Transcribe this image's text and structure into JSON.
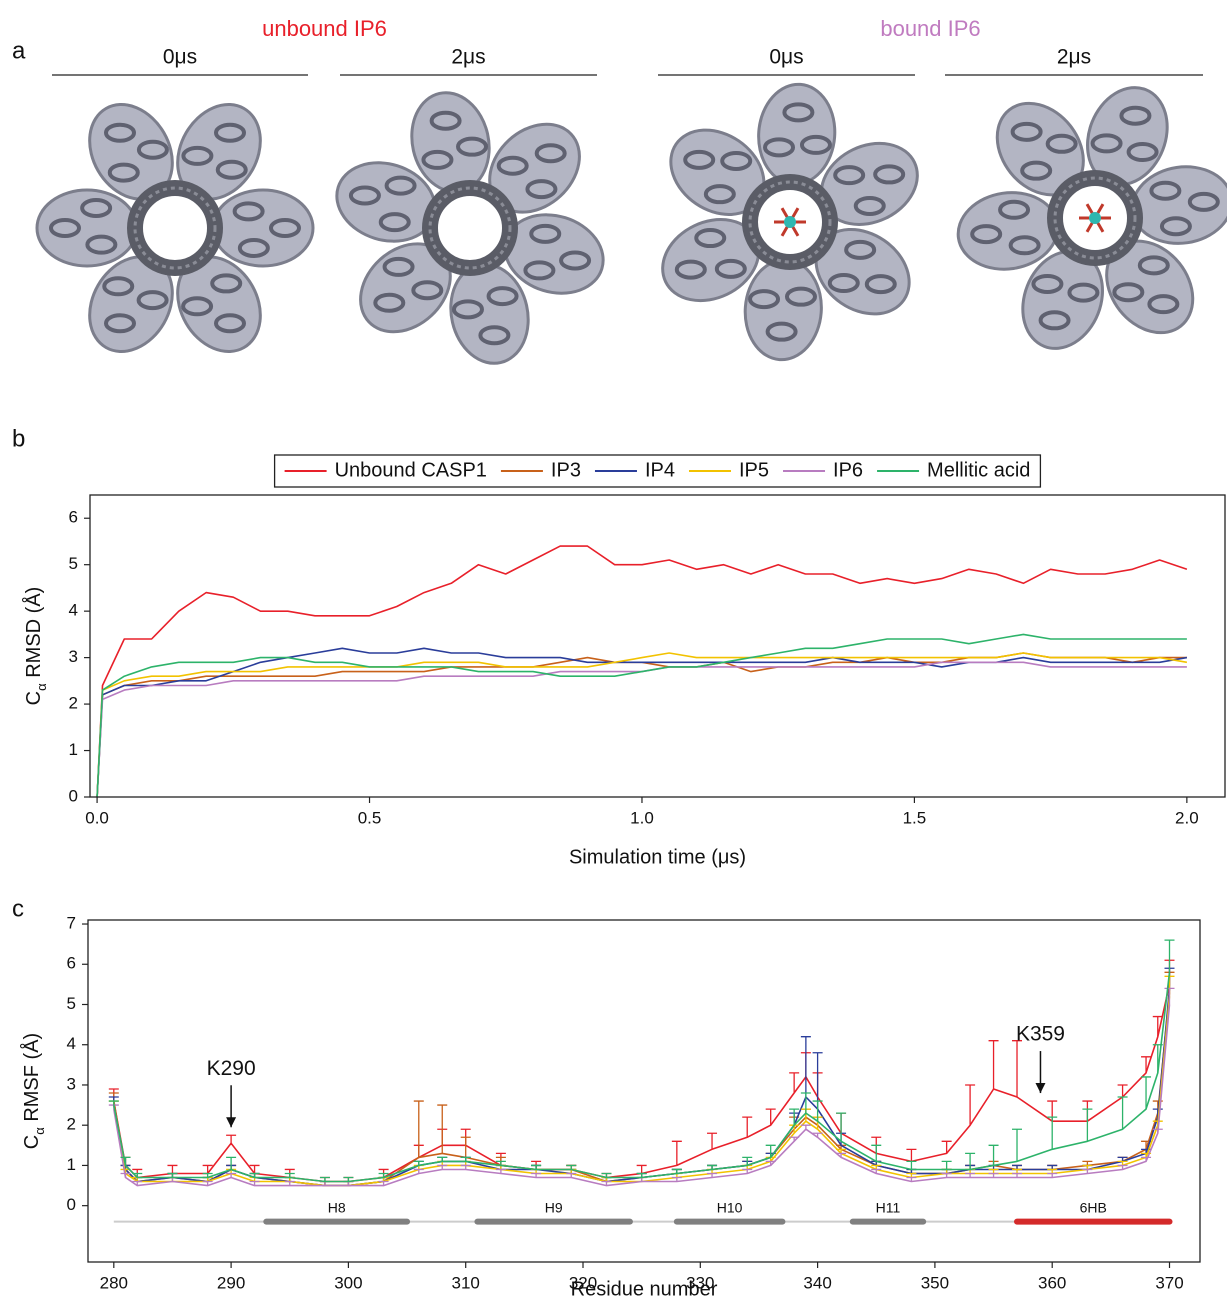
{
  "figure": {
    "panel_labels": [
      "a",
      "b",
      "c"
    ],
    "panel_a": [
      {
        "title": "unbound IP6",
        "color": "#e8202a",
        "times": [
          "0μs",
          "2μs"
        ]
      },
      {
        "title": "bound IP6",
        "color": "#c07bc0",
        "times": [
          "0μs",
          "2μs"
        ]
      }
    ]
  },
  "chart_data": [
    {
      "type": "line",
      "legend": "top",
      "xlabel": "Simulation time (μs)",
      "ylabel": [
        "C",
        "α",
        " RMSD (Å)"
      ],
      "xlim": [
        -0.013,
        2.07
      ],
      "ylim": [
        0,
        6.5
      ],
      "xticks": [
        {
          "value": 0,
          "label": "0.0"
        },
        0.5,
        {
          "value": 1,
          "label": "1.0"
        },
        1.5,
        {
          "value": 2,
          "label": "2.0"
        }
      ],
      "yticks": [
        0,
        1,
        2,
        3,
        4,
        5,
        6
      ],
      "x": [
        0,
        0.01,
        0.05,
        0.1,
        0.15,
        0.2,
        0.25,
        0.3,
        0.35,
        0.4,
        0.45,
        0.5,
        0.55,
        0.6,
        0.65,
        0.7,
        0.75,
        0.8,
        0.85,
        0.9,
        0.95,
        1.0,
        1.05,
        1.1,
        1.15,
        1.2,
        1.25,
        1.3,
        1.35,
        1.4,
        1.45,
        1.5,
        1.55,
        1.6,
        1.65,
        1.7,
        1.75,
        1.8,
        1.85,
        1.9,
        1.95,
        2.0
      ],
      "series": [
        {
          "name": "Unbound CASP1",
          "color": "#e8202a",
          "values": [
            0,
            2.4,
            3.4,
            3.4,
            4.0,
            4.4,
            4.3,
            4.0,
            4.0,
            3.9,
            3.9,
            3.9,
            4.1,
            4.4,
            4.6,
            5.0,
            4.8,
            5.1,
            5.4,
            5.4,
            5.0,
            5.0,
            5.1,
            4.9,
            5.0,
            4.8,
            5.0,
            4.8,
            4.8,
            4.6,
            4.7,
            4.6,
            4.7,
            4.9,
            4.8,
            4.6,
            4.9,
            4.8,
            4.8,
            4.9,
            5.1,
            4.9
          ]
        },
        {
          "name": "IP3",
          "color": "#c8611a",
          "values": [
            0,
            2.2,
            2.4,
            2.5,
            2.5,
            2.6,
            2.6,
            2.6,
            2.6,
            2.6,
            2.7,
            2.7,
            2.7,
            2.7,
            2.8,
            2.8,
            2.8,
            2.8,
            2.9,
            3.0,
            2.9,
            2.9,
            2.8,
            2.8,
            2.9,
            2.7,
            2.8,
            2.8,
            2.9,
            2.9,
            3.0,
            2.9,
            2.9,
            3.0,
            3.0,
            3.1,
            3.0,
            3.0,
            3.0,
            2.9,
            3.0,
            3.0
          ]
        },
        {
          "name": "IP4",
          "color": "#2a3d9a",
          "values": [
            0,
            2.2,
            2.4,
            2.4,
            2.5,
            2.5,
            2.7,
            2.9,
            3.0,
            3.1,
            3.2,
            3.1,
            3.1,
            3.2,
            3.1,
            3.1,
            3.0,
            3.0,
            3.0,
            2.9,
            2.9,
            2.9,
            2.9,
            2.9,
            2.9,
            2.9,
            2.9,
            2.9,
            3.0,
            2.9,
            2.9,
            2.9,
            2.8,
            2.9,
            2.9,
            3.0,
            2.9,
            2.9,
            2.9,
            2.9,
            2.9,
            3.0
          ]
        },
        {
          "name": "IP5",
          "color": "#f2c200",
          "values": [
            0,
            2.3,
            2.5,
            2.6,
            2.6,
            2.7,
            2.7,
            2.7,
            2.8,
            2.8,
            2.8,
            2.8,
            2.8,
            2.9,
            2.9,
            2.9,
            2.8,
            2.8,
            2.8,
            2.8,
            2.9,
            3.0,
            3.1,
            3.0,
            3.0,
            3.0,
            3.0,
            3.0,
            3.0,
            3.0,
            3.0,
            3.0,
            3.0,
            3.0,
            3.0,
            3.1,
            3.0,
            3.0,
            3.0,
            3.0,
            3.0,
            2.9
          ]
        },
        {
          "name": "IP6",
          "color": "#b87cc0",
          "values": [
            0,
            2.1,
            2.3,
            2.4,
            2.4,
            2.4,
            2.5,
            2.5,
            2.5,
            2.5,
            2.5,
            2.5,
            2.5,
            2.6,
            2.6,
            2.6,
            2.6,
            2.6,
            2.7,
            2.7,
            2.7,
            2.7,
            2.8,
            2.8,
            2.8,
            2.8,
            2.8,
            2.8,
            2.8,
            2.8,
            2.8,
            2.8,
            2.9,
            2.9,
            2.9,
            2.9,
            2.8,
            2.8,
            2.8,
            2.8,
            2.8,
            2.8
          ]
        },
        {
          "name": "Mellitic acid",
          "color": "#2db36a",
          "values": [
            0,
            2.3,
            2.6,
            2.8,
            2.9,
            2.9,
            2.9,
            3.0,
            3.0,
            2.9,
            2.9,
            2.8,
            2.8,
            2.8,
            2.8,
            2.7,
            2.7,
            2.7,
            2.6,
            2.6,
            2.6,
            2.7,
            2.8,
            2.8,
            2.9,
            3.0,
            3.1,
            3.2,
            3.2,
            3.3,
            3.4,
            3.4,
            3.4,
            3.3,
            3.4,
            3.5,
            3.4,
            3.4,
            3.4,
            3.4,
            3.4,
            3.4
          ]
        }
      ]
    },
    {
      "type": "line",
      "xlabel": "Residue number",
      "ylabel": [
        "C",
        "α",
        " RMSF (Å)"
      ],
      "xlim": [
        277.8,
        372.6
      ],
      "ylim": [
        -1.4,
        7.1
      ],
      "xticks": [
        280,
        290,
        300,
        310,
        320,
        330,
        340,
        350,
        360,
        370
      ],
      "yticks": [
        0,
        1,
        2,
        3,
        4,
        5,
        6,
        7
      ],
      "x": [
        280,
        281,
        282,
        285,
        288,
        290,
        292,
        295,
        298,
        300,
        303,
        306,
        308,
        310,
        313,
        316,
        319,
        322,
        325,
        328,
        331,
        334,
        336,
        338,
        339,
        340,
        342,
        345,
        348,
        351,
        353,
        355,
        357,
        360,
        363,
        366,
        368,
        369,
        370
      ],
      "series": [
        {
          "name": "Unbound CASP1",
          "color": "#e8202a",
          "values": [
            2.6,
            1.0,
            0.7,
            0.8,
            0.8,
            1.55,
            0.8,
            0.7,
            0.6,
            0.6,
            0.7,
            1.2,
            1.5,
            1.5,
            1.0,
            0.9,
            0.9,
            0.7,
            0.8,
            1.0,
            1.4,
            1.7,
            2.0,
            2.8,
            3.2,
            2.7,
            1.8,
            1.3,
            1.1,
            1.3,
            2.0,
            2.9,
            2.7,
            2.1,
            2.1,
            2.7,
            3.3,
            4.2,
            5.5
          ],
          "errors": [
            0.3,
            0.2,
            0.2,
            0.2,
            0.2,
            0.2,
            0.2,
            0.2,
            0.1,
            0.1,
            0.2,
            0.3,
            0.4,
            0.4,
            0.3,
            0.2,
            0.1,
            0.1,
            0.2,
            0.6,
            0.4,
            0.5,
            0.4,
            0.5,
            0.6,
            0.6,
            0.5,
            0.4,
            0.3,
            0.3,
            1.0,
            1.2,
            1.4,
            0.5,
            0.5,
            0.3,
            0.4,
            0.5,
            0.6
          ]
        },
        {
          "name": "IP3",
          "color": "#c8611a",
          "values": [
            2.6,
            0.9,
            0.6,
            0.7,
            0.6,
            0.9,
            0.7,
            0.6,
            0.5,
            0.5,
            0.6,
            1.2,
            1.3,
            1.2,
            1.0,
            0.9,
            0.9,
            0.6,
            0.7,
            0.8,
            0.9,
            1.0,
            1.2,
            1.9,
            2.2,
            2.0,
            1.4,
            1.0,
            0.8,
            0.8,
            0.9,
            1.0,
            0.9,
            0.9,
            1.0,
            1.1,
            1.4,
            2.3,
            5.3
          ],
          "errors": [
            0.2,
            0.1,
            0.1,
            0.1,
            0.1,
            0.1,
            0.1,
            0.1,
            0.1,
            0.1,
            0.1,
            1.4,
            1.2,
            0.5,
            0.2,
            0.1,
            0.1,
            0.1,
            0.1,
            0.1,
            0.1,
            0.1,
            0.1,
            0.3,
            0.2,
            0.2,
            0.1,
            0.1,
            0.1,
            0.1,
            0.1,
            0.1,
            0.1,
            0.1,
            0.1,
            0.1,
            0.2,
            0.3,
            0.5
          ]
        },
        {
          "name": "IP4",
          "color": "#2a3d9a",
          "values": [
            2.5,
            0.9,
            0.6,
            0.7,
            0.6,
            0.9,
            0.7,
            0.6,
            0.5,
            0.5,
            0.6,
            1.0,
            1.1,
            1.1,
            0.9,
            0.9,
            0.8,
            0.6,
            0.7,
            0.8,
            0.9,
            1.0,
            1.2,
            2.0,
            2.7,
            2.4,
            1.5,
            1.0,
            0.8,
            0.8,
            0.9,
            0.9,
            0.9,
            0.9,
            0.9,
            1.1,
            1.3,
            2.2,
            5.4
          ],
          "errors": [
            0.2,
            0.1,
            0.1,
            0.1,
            0.1,
            0.1,
            0.1,
            0.1,
            0.1,
            0.1,
            0.1,
            0.1,
            0.1,
            0.1,
            0.1,
            0.1,
            0.1,
            0.1,
            0.1,
            0.1,
            0.1,
            0.1,
            0.1,
            0.3,
            1.5,
            1.4,
            0.3,
            0.1,
            0.1,
            0.1,
            0.1,
            0.1,
            0.1,
            0.1,
            0.1,
            0.1,
            0.1,
            0.2,
            0.5
          ]
        },
        {
          "name": "IP5",
          "color": "#f2c200",
          "values": [
            2.5,
            0.8,
            0.6,
            0.6,
            0.6,
            0.8,
            0.6,
            0.6,
            0.5,
            0.5,
            0.6,
            0.9,
            1.0,
            1.0,
            0.9,
            0.8,
            0.8,
            0.6,
            0.6,
            0.7,
            0.8,
            0.9,
            1.1,
            1.8,
            2.1,
            1.9,
            1.3,
            0.9,
            0.7,
            0.8,
            0.8,
            0.8,
            0.8,
            0.8,
            0.9,
            1.0,
            1.2,
            2.0,
            5.2
          ],
          "errors": [
            0.1,
            0.1,
            0.1,
            0.1,
            0.1,
            0.1,
            0.1,
            0.1,
            0.1,
            0.1,
            0.1,
            0.1,
            0.1,
            0.1,
            0.1,
            0.1,
            0.1,
            0.1,
            0.1,
            0.1,
            0.1,
            0.1,
            0.1,
            0.2,
            0.3,
            0.3,
            0.1,
            0.1,
            0.1,
            0.1,
            0.1,
            0.1,
            0.1,
            0.1,
            0.1,
            0.1,
            0.1,
            0.1,
            0.5
          ]
        },
        {
          "name": "IP6",
          "color": "#b87cc0",
          "values": [
            2.4,
            0.7,
            0.5,
            0.6,
            0.5,
            0.7,
            0.5,
            0.5,
            0.5,
            0.5,
            0.5,
            0.8,
            0.9,
            0.9,
            0.8,
            0.7,
            0.7,
            0.5,
            0.6,
            0.6,
            0.7,
            0.8,
            1.0,
            1.6,
            1.9,
            1.7,
            1.2,
            0.8,
            0.6,
            0.7,
            0.7,
            0.7,
            0.7,
            0.7,
            0.8,
            0.9,
            1.1,
            1.8,
            5.0
          ],
          "errors": [
            0.1,
            0.1,
            0.1,
            0.1,
            0.1,
            0.1,
            0.1,
            0.1,
            0.1,
            0.1,
            0.1,
            0.1,
            0.1,
            0.1,
            0.1,
            0.1,
            0.1,
            0.1,
            0.1,
            0.1,
            0.1,
            0.1,
            0.1,
            0.1,
            0.1,
            0.1,
            0.1,
            0.1,
            0.1,
            0.1,
            0.1,
            0.1,
            0.1,
            0.1,
            0.1,
            0.1,
            0.1,
            0.1,
            0.4
          ]
        },
        {
          "name": "Mellitic acid",
          "color": "#2db36a",
          "values": [
            2.5,
            1.0,
            0.7,
            0.7,
            0.7,
            0.9,
            0.7,
            0.7,
            0.6,
            0.6,
            0.7,
            1.0,
            1.1,
            1.1,
            1.0,
            0.9,
            0.9,
            0.7,
            0.7,
            0.8,
            0.9,
            1.0,
            1.2,
            2.0,
            2.3,
            2.1,
            1.6,
            1.1,
            0.9,
            0.9,
            0.9,
            1.0,
            1.1,
            1.4,
            1.6,
            1.9,
            2.4,
            3.3,
            5.8
          ],
          "errors": [
            0.1,
            0.2,
            0.1,
            0.1,
            0.1,
            0.3,
            0.1,
            0.1,
            0.1,
            0.1,
            0.1,
            0.1,
            0.1,
            0.1,
            0.1,
            0.1,
            0.1,
            0.1,
            0.1,
            0.1,
            0.1,
            0.2,
            0.3,
            0.4,
            0.5,
            0.5,
            0.7,
            0.4,
            0.2,
            0.2,
            0.4,
            0.5,
            0.8,
            0.8,
            0.8,
            0.8,
            0.8,
            0.7,
            0.8
          ]
        }
      ],
      "regions": [
        {
          "label": "H8",
          "start": 293,
          "end": 305,
          "color": "#808080"
        },
        {
          "label": "H9",
          "start": 311,
          "end": 324,
          "color": "#808080"
        },
        {
          "label": "H10",
          "start": 328,
          "end": 337,
          "color": "#808080"
        },
        {
          "label": "H11",
          "start": 343,
          "end": 349,
          "color": "#808080"
        },
        {
          "label": "6HB",
          "start": 357,
          "end": 370,
          "color": "#d42a2a"
        }
      ],
      "annotations": [
        {
          "text": "K290",
          "x": 290
        },
        {
          "text": "K359",
          "x": 359
        }
      ]
    }
  ]
}
